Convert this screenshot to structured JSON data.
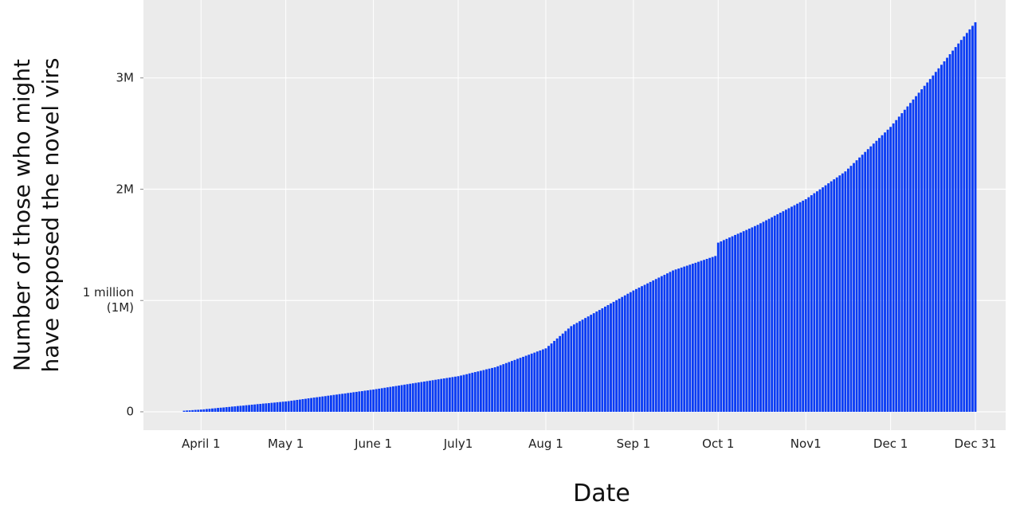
{
  "chart_data": {
    "type": "bar",
    "y_label": "Number of those who might\nhave exposed the novel virs",
    "x_label": "Date",
    "color": "#0a3cf5",
    "grid": true,
    "ylim": [
      -165000,
      3700000
    ],
    "yticks": [
      0,
      {
        "value": 1000000,
        "label": "1 million\n(1M)"
      },
      {
        "value": 2000000,
        "label": "2M"
      },
      {
        "value": 3000000,
        "label": "3M"
      }
    ],
    "categories": [
      null,
      null,
      null,
      null,
      null,
      null,
      "April 1",
      null,
      null,
      null,
      null,
      null,
      null,
      null,
      null,
      null,
      null,
      null,
      null,
      null,
      null,
      null,
      null,
      null,
      null,
      null,
      null,
      null,
      null,
      null,
      null,
      null,
      null,
      null,
      null,
      null,
      "May 1",
      null,
      null,
      null,
      null,
      null,
      null,
      null,
      null,
      null,
      null,
      null,
      null,
      null,
      null,
      null,
      null,
      null,
      null,
      null,
      null,
      null,
      null,
      null,
      null,
      null,
      null,
      null,
      null,
      null,
      null,
      "June 1",
      null,
      null,
      null,
      null,
      null,
      null,
      null,
      null,
      null,
      null,
      null,
      null,
      null,
      null,
      null,
      null,
      null,
      null,
      null,
      null,
      null,
      null,
      null,
      null,
      null,
      null,
      null,
      null,
      null,
      "July1",
      null,
      null,
      null,
      null,
      null,
      null,
      null,
      null,
      null,
      null,
      null,
      null,
      null,
      null,
      null,
      null,
      null,
      null,
      null,
      null,
      null,
      null,
      null,
      null,
      null,
      null,
      null,
      null,
      null,
      null,
      "Aug 1",
      null,
      null,
      null,
      null,
      null,
      null,
      null,
      null,
      null,
      null,
      null,
      null,
      null,
      null,
      null,
      null,
      null,
      null,
      null,
      null,
      null,
      null,
      null,
      null,
      null,
      null,
      null,
      null,
      null,
      null,
      "Sep 1",
      null,
      null,
      null,
      null,
      null,
      null,
      null,
      null,
      null,
      null,
      null,
      null,
      null,
      null,
      null,
      null,
      null,
      null,
      null,
      null,
      null,
      null,
      null,
      null,
      null,
      null,
      null,
      null,
      null,
      "Oct 1",
      null,
      null,
      null,
      null,
      null,
      null,
      null,
      null,
      null,
      null,
      null,
      null,
      null,
      null,
      null,
      null,
      null,
      null,
      null,
      null,
      null,
      null,
      null,
      null,
      null,
      null,
      null,
      null,
      null,
      null,
      "Nov1",
      null,
      null,
      null,
      null,
      null,
      null,
      null,
      null,
      null,
      null,
      null,
      null,
      null,
      null,
      null,
      null,
      null,
      null,
      null,
      null,
      null,
      null,
      null,
      null,
      null,
      null,
      null,
      null,
      null,
      "Dec 1",
      null,
      null,
      null,
      null,
      null,
      null,
      null,
      null,
      null,
      null,
      null,
      null,
      null,
      null,
      null,
      null,
      null,
      null,
      null,
      null,
      null,
      null,
      null,
      null,
      null,
      null,
      null,
      null,
      null,
      "Dec 31"
    ],
    "values": [
      10000,
      12000,
      13000,
      15000,
      17000,
      18000,
      20000,
      22000,
      25000,
      27000,
      30000,
      32000,
      35000,
      37000,
      39000,
      42000,
      44000,
      47000,
      49000,
      52000,
      54000,
      56000,
      59000,
      61000,
      64000,
      66000,
      69000,
      71000,
      74000,
      76000,
      78000,
      81000,
      83000,
      86000,
      88000,
      91000,
      93000,
      96000,
      100000,
      103000,
      107000,
      110000,
      114000,
      117000,
      121000,
      124000,
      128000,
      131000,
      134000,
      138000,
      141000,
      145000,
      148000,
      152000,
      155000,
      159000,
      162000,
      165000,
      169000,
      172000,
      176000,
      179000,
      183000,
      186000,
      190000,
      193000,
      197000,
      200000,
      204000,
      208000,
      212000,
      216000,
      220000,
      224000,
      228000,
      232000,
      236000,
      240000,
      244000,
      248000,
      252000,
      256000,
      260000,
      264000,
      268000,
      272000,
      276000,
      280000,
      284000,
      288000,
      292000,
      296000,
      300000,
      304000,
      308000,
      312000,
      316000,
      320000,
      326000,
      332000,
      338000,
      345000,
      351000,
      357000,
      363000,
      369000,
      375000,
      382000,
      388000,
      394000,
      400000,
      409000,
      419000,
      428000,
      438000,
      447000,
      457000,
      466000,
      476000,
      485000,
      494000,
      504000,
      513000,
      523000,
      532000,
      542000,
      551000,
      561000,
      570000,
      592000,
      614000,
      637000,
      659000,
      681000,
      703000,
      726000,
      748000,
      770000,
      785000,
      799000,
      814000,
      828000,
      843000,
      857000,
      872000,
      886000,
      901000,
      915000,
      930000,
      945000,
      959000,
      974000,
      988000,
      1003000,
      1017000,
      1032000,
      1046000,
      1061000,
      1075000,
      1090000,
      1103000,
      1116000,
      1129000,
      1141000,
      1154000,
      1167000,
      1180000,
      1193000,
      1206000,
      1219000,
      1231000,
      1244000,
      1257000,
      1270000,
      1279000,
      1287000,
      1296000,
      1305000,
      1313000,
      1322000,
      1331000,
      1339000,
      1348000,
      1357000,
      1365000,
      1374000,
      1383000,
      1391000,
      1400000,
      1520000,
      1531000,
      1543000,
      1554000,
      1566000,
      1577000,
      1589000,
      1600000,
      1611000,
      1623000,
      1634000,
      1646000,
      1657000,
      1669000,
      1680000,
      1694000,
      1707000,
      1721000,
      1734000,
      1748000,
      1762000,
      1775000,
      1789000,
      1802000,
      1816000,
      1829000,
      1843000,
      1856000,
      1870000,
      1883000,
      1897000,
      1910000,
      1928000,
      1946000,
      1964000,
      1981000,
      1999000,
      2017000,
      2035000,
      2053000,
      2071000,
      2089000,
      2106000,
      2124000,
      2142000,
      2160000,
      2185000,
      2210000,
      2235000,
      2260000,
      2285000,
      2310000,
      2335000,
      2360000,
      2385000,
      2410000,
      2435000,
      2460000,
      2485000,
      2510000,
      2535000,
      2560000,
      2591000,
      2621000,
      2652000,
      2683000,
      2714000,
      2744000,
      2775000,
      2806000,
      2836000,
      2867000,
      2898000,
      2929000,
      2959000,
      2990000,
      3022000,
      3054000,
      3086000,
      3118000,
      3149000,
      3181000,
      3213000,
      3245000,
      3277000,
      3309000,
      3341000,
      3373000,
      3404000,
      3436000,
      3468000,
      3500000
    ]
  }
}
